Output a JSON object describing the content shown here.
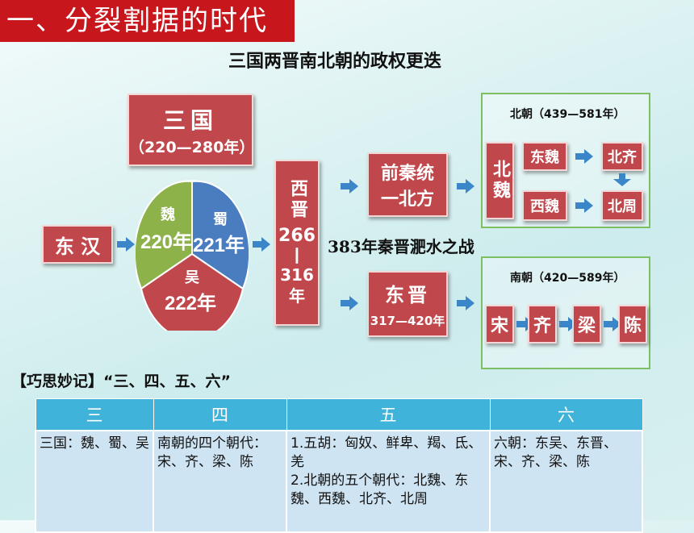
{
  "title_badge": "一、分裂割据的时代",
  "subtitle": "三国两晋南北朝的政权更迭",
  "three_kingdoms": {
    "title": "三国",
    "years": "（220—280年）"
  },
  "donghan": "东 汉",
  "pie": {
    "wei": {
      "name": "魏",
      "year": "220年",
      "color": "#8db24a"
    },
    "shu": {
      "name": "蜀",
      "year": "221年",
      "color": "#4a7cc0"
    },
    "wu": {
      "name": "吴",
      "year": "222年",
      "color": "#c0474b"
    }
  },
  "xijin": {
    "name": "西晋",
    "start": "266",
    "dash": "—",
    "end": "316年"
  },
  "qianqin": "前秦统一北方",
  "battle": "383年秦晋淝水之战",
  "dongjin": {
    "name": "东晋",
    "years": "317—420年"
  },
  "north": {
    "title": "北朝（439—581年）",
    "beiwei": "北魏",
    "dongwei": "东魏",
    "xiwei": "西魏",
    "beiqi": "北齐",
    "beizhou": "北周"
  },
  "south": {
    "title": "南朝（420—589年）",
    "dynasties": [
      "宋",
      "齐",
      "梁",
      "陈"
    ]
  },
  "memo": {
    "heading": "【巧思妙记】“三、四、五、六”",
    "headers": [
      "三",
      "四",
      "五",
      "六"
    ],
    "cells": [
      "三国：魏、蜀、吴",
      "南朝的四个朝代：宋、齐、梁、陈",
      "1.五胡：匈奴、鲜卑、羯、氐、羌\n2.北朝的五个朝代：北魏、东魏、西魏、北齐、北周",
      "六朝：东吴、东晋、宋、齐、梁、陈"
    ]
  },
  "colors": {
    "red_box": "#c0474b",
    "arrow_blue": "#3a86c8",
    "frame_green": "#7fbf63",
    "table_header": "#3fb3d9",
    "table_cell": "#cfe4f2"
  }
}
